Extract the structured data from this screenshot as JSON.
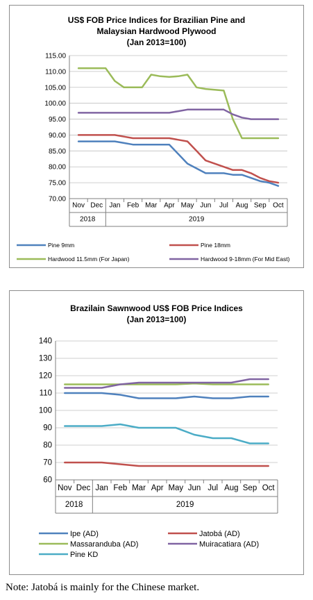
{
  "chart_data": [
    {
      "type": "line",
      "title": "US$ FOB Price Indices for Brazilian Pine and Malaysian Hardwood Plywood",
      "title_lines": [
        "US$ FOB Price Indices for Brazilian Pine and",
        "Malaysian Hardwood Plywood",
        "(Jan 2013=100)"
      ],
      "months": [
        "Nov",
        "Dec",
        "Jan",
        "Feb",
        "Mar",
        "Apr",
        "May",
        "Jun",
        "Jul",
        "Aug",
        "Sep",
        "Oct"
      ],
      "years": [
        "2018",
        "2019"
      ],
      "ylim": [
        70,
        115
      ],
      "yticks": [
        "70.00",
        "75.00",
        "80.00",
        "85.00",
        "90.00",
        "95.00",
        "100.00",
        "105.00",
        "110.00",
        "115.00"
      ],
      "legend_position": "bottom",
      "grid": true,
      "series": [
        {
          "name": "Pine 9mm",
          "color": "#4f81bd",
          "x": [
            0,
            1,
            1.5,
            2,
            2.5,
            3,
            4,
            5,
            5.5,
            6,
            6.5,
            7,
            8,
            8.5,
            9,
            9.5,
            10,
            10.5,
            11
          ],
          "values": [
            88,
            88,
            88,
            88,
            87.5,
            87,
            87,
            87,
            84,
            81,
            79.5,
            78,
            78,
            77.5,
            77.5,
            76.5,
            75.5,
            75,
            74
          ]
        },
        {
          "name": "Pine 18mm",
          "color": "#c0504d",
          "x": [
            0,
            1,
            2,
            2.5,
            3,
            4,
            5,
            5.5,
            6,
            6.5,
            7,
            8,
            8.5,
            9,
            9.5,
            10,
            10.5,
            11
          ],
          "values": [
            90,
            90,
            90,
            89.5,
            89,
            89,
            89,
            88.5,
            88,
            85,
            82,
            80,
            79,
            79,
            78,
            76.5,
            75.5,
            75
          ]
        },
        {
          "name": "Hardwood 11.5mm (For Japan)",
          "color": "#9bbb59",
          "x": [
            0,
            1,
            1.5,
            2,
            2.5,
            3,
            3.5,
            4,
            4.5,
            5,
            5.5,
            6,
            6.5,
            7,
            8,
            8.5,
            9,
            10,
            11
          ],
          "values": [
            111,
            111,
            111,
            107,
            105,
            105,
            105,
            109,
            108.5,
            108.3,
            108.5,
            109,
            105,
            104.5,
            104,
            95,
            89,
            89,
            89
          ]
        },
        {
          "name": "Hardwood 9-18mm (For Mid East)",
          "color": "#8064a2",
          "x": [
            0,
            1,
            2,
            3,
            4,
            5,
            5.5,
            6,
            7,
            8,
            8.5,
            9,
            9.5,
            10,
            11
          ],
          "values": [
            97,
            97,
            97,
            97,
            97,
            97,
            97.5,
            98,
            98,
            98,
            96.5,
            95.5,
            95,
            95,
            95
          ]
        }
      ]
    },
    {
      "type": "line",
      "title": "Brazilain Sawnwood US$ FOB Price Indices",
      "title_lines": [
        "Brazilain Sawnwood US$ FOB Price Indices",
        "(Jan 2013=100)"
      ],
      "months": [
        "Nov",
        "Dec",
        "Jan",
        "Feb",
        "Mar",
        "Apr",
        "May",
        "Jun",
        "Jul",
        "Aug",
        "Sep",
        "Oct"
      ],
      "years": [
        "2018",
        "2019"
      ],
      "ylim": [
        60,
        140
      ],
      "yticks": [
        "60",
        "70",
        "80",
        "90",
        "100",
        "110",
        "120",
        "130",
        "140"
      ],
      "legend_position": "bottom",
      "grid": true,
      "series": [
        {
          "name": "Ipe (AD)",
          "color": "#4f81bd",
          "x": [
            0,
            1,
            2,
            3,
            4,
            5,
            6,
            7,
            8,
            9,
            10,
            11
          ],
          "values": [
            110,
            110,
            110,
            109,
            107,
            107,
            107,
            108,
            107,
            107,
            108,
            108
          ]
        },
        {
          "name": "Jatobá (AD)",
          "color": "#c0504d",
          "x": [
            0,
            1,
            2,
            3,
            4,
            5,
            6,
            7,
            8,
            9,
            10,
            11
          ],
          "values": [
            70,
            70,
            70,
            69,
            68,
            68,
            68,
            68,
            68,
            68,
            68,
            68
          ]
        },
        {
          "name": "Massaranduba (AD)",
          "color": "#9bbb59",
          "x": [
            0,
            1,
            2,
            3,
            4,
            5,
            6,
            7,
            8,
            9,
            10,
            11
          ],
          "values": [
            115,
            115,
            115,
            115,
            115,
            115,
            115,
            115.5,
            115,
            115,
            115,
            115
          ]
        },
        {
          "name": "Muiracatiara (AD)",
          "color": "#8064a2",
          "x": [
            0,
            1,
            2,
            3,
            4,
            5,
            6,
            7,
            8,
            9,
            10,
            11
          ],
          "values": [
            113,
            113,
            113,
            115,
            116,
            116,
            116,
            116,
            116,
            116,
            118,
            118
          ]
        },
        {
          "name": "Pine KD",
          "color": "#4bacc6",
          "x": [
            0,
            1,
            2,
            3,
            4,
            5,
            6,
            7,
            8,
            9,
            10,
            11
          ],
          "values": [
            91,
            91,
            91,
            92,
            90,
            90,
            90,
            86,
            84,
            84,
            81,
            81
          ]
        }
      ]
    }
  ],
  "note": "Note: Jatobá is mainly for the Chinese market."
}
